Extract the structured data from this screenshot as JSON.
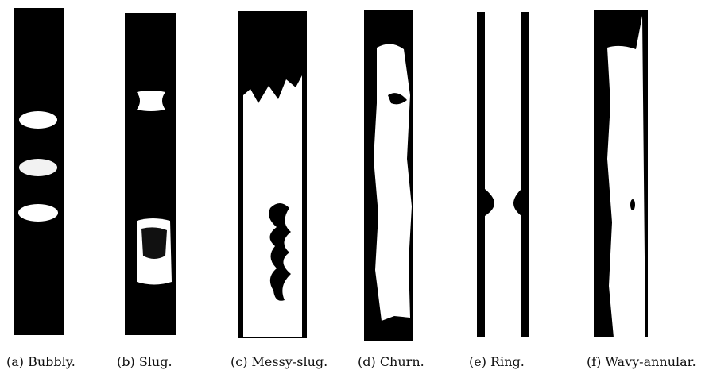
{
  "panels": [
    {
      "caption": "(a) Bubbly."
    },
    {
      "caption": "(b) Slug."
    },
    {
      "caption": "(c) Messy-slug."
    },
    {
      "caption": "(d) Churn."
    },
    {
      "caption": "(e) Ring."
    },
    {
      "caption": "(f) Wavy-annular."
    }
  ]
}
